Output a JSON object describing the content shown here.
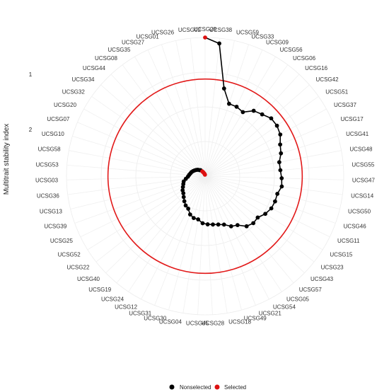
{
  "chart_data": {
    "type": "line",
    "projection": "polar",
    "ylabel": "Multitrait stability index",
    "radial_ticks": [
      "1",
      "2"
    ],
    "legend": {
      "placement": "bottom",
      "entries": [
        {
          "name": "Nonselected",
          "color": "#000000"
        },
        {
          "name": "Selected",
          "color": "#dd1111"
        }
      ]
    },
    "cutoff_circle": {
      "value": 2.6,
      "color": "#e21a1a"
    },
    "ylim": [
      3.71,
      0
    ],
    "categories": [
      "UCSG29",
      "UCSG38",
      "UCSG59",
      "UCSG33",
      "UCSG09",
      "UCSG56",
      "UCSG06",
      "UCSG16",
      "UCSG42",
      "UCSG51",
      "UCSG37",
      "UCSG17",
      "UCSG41",
      "UCSG48",
      "UCSG55",
      "UCSG47",
      "UCSG14",
      "UCSG50",
      "UCSG46",
      "UCSG11",
      "UCSG15",
      "UCSG23",
      "UCSG43",
      "UCSG57",
      "UCSG05",
      "UCSG54",
      "UCSG21",
      "UCSG49",
      "UCSG18",
      "UCSG28",
      "UCSG45",
      "UCSG04",
      "UCSG30",
      "UCSG31",
      "UCSG12",
      "UCSG24",
      "UCSG19",
      "UCSG40",
      "UCSG22",
      "UCSG52",
      "UCSG25",
      "UCSG39",
      "UCSG13",
      "UCSG36",
      "UCSG03",
      "UCSG53",
      "UCSG58",
      "UCSG10",
      "UCSG07",
      "UCSG20",
      "UCSG32",
      "UCSG34",
      "UCSG44",
      "UCSG08",
      "UCSG35",
      "UCSG27",
      "UCSG01",
      "UCSG26",
      "UCSG02"
    ],
    "series": [
      {
        "name": "",
        "values": [
          3.71,
          3.57,
          2.4,
          2.04,
          2.04,
          1.99,
          2.18,
          2.25,
          2.35,
          2.35,
          2.3,
          2.18,
          2.12,
          2.02,
          2.02,
          2.05,
          2.07,
          1.99,
          1.99,
          1.97,
          1.9,
          1.79,
          1.8,
          1.74,
          1.57,
          1.51,
          1.39,
          1.34,
          1.31,
          1.29,
          1.26,
          1.17,
          1.16,
          1.1,
          0.98,
          0.94,
          0.87,
          0.8,
          0.74,
          0.71,
          0.66,
          0.62,
          0.59,
          0.52,
          0.46,
          0.43,
          0.4,
          0.38,
          0.35,
          0.32,
          0.29,
          0.26,
          0.22,
          0.2,
          0.15,
          0.11,
          0.08,
          0.06,
          0.04
        ],
        "selected": [
          true,
          false,
          false,
          false,
          false,
          false,
          false,
          false,
          false,
          false,
          false,
          false,
          false,
          false,
          false,
          false,
          false,
          false,
          false,
          false,
          false,
          false,
          false,
          false,
          false,
          false,
          false,
          false,
          false,
          false,
          false,
          false,
          false,
          false,
          false,
          false,
          false,
          false,
          false,
          false,
          false,
          false,
          false,
          false,
          false,
          false,
          false,
          false,
          false,
          false,
          false,
          false,
          false,
          false,
          true,
          true,
          true,
          true,
          true
        ]
      }
    ]
  }
}
